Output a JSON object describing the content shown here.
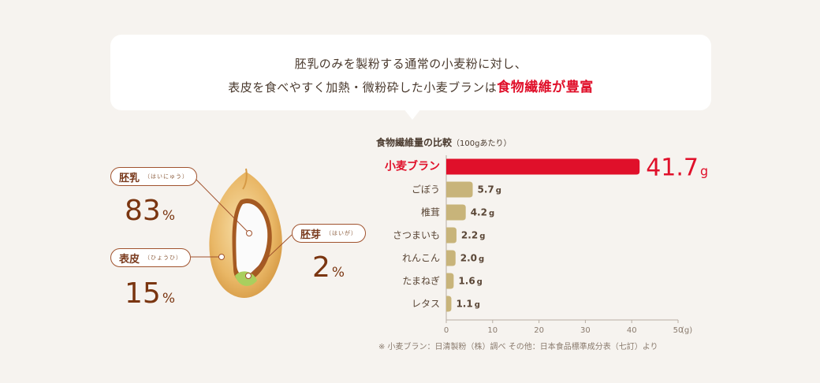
{
  "headline": {
    "line1": "胚乳のみを製粉する通常の小麦粉に対し、",
    "line2_prefix": "表皮を食べやすく加熱・微粉砕した小麦ブランは",
    "line2_highlight": "食物繊維が豊富"
  },
  "wheat": {
    "endosperm": {
      "label": "胚乳",
      "ruby": "（はいにゅう）",
      "value": "83",
      "unit": "%"
    },
    "bran": {
      "label": "表皮",
      "ruby": "（ひょうひ）",
      "value": "15",
      "unit": "%"
    },
    "germ": {
      "label": "胚芽",
      "ruby": "（はいが）",
      "value": "2",
      "unit": "%"
    }
  },
  "chart_title": {
    "main": "食物繊維量の比較",
    "sub": "（100gあたり）"
  },
  "footnote": "※ 小麦ブラン：日清製粉（株）調べ その他：日本食品標準成分表（七訂）より",
  "colors": {
    "highlight": "#e0102a",
    "bar": "#c8b47a",
    "text_brown": "#7a3510"
  },
  "chart_data": {
    "type": "bar",
    "orientation": "horizontal",
    "categories": [
      "小麦ブラン",
      "ごぼう",
      "椎茸",
      "さつまいも",
      "れんこん",
      "たまねぎ",
      "レタス"
    ],
    "values": [
      41.7,
      5.7,
      4.2,
      2.2,
      2.0,
      1.6,
      1.1
    ],
    "value_labels": [
      "41.7",
      "5.7",
      "4.2",
      "2.2",
      "2.0",
      "1.6",
      "1.1"
    ],
    "value_unit": "g",
    "xlim": [
      0,
      50
    ],
    "xticks": [
      0,
      10,
      20,
      30,
      40,
      50
    ],
    "x_unit_label": "(g)",
    "highlight_index": 0
  }
}
